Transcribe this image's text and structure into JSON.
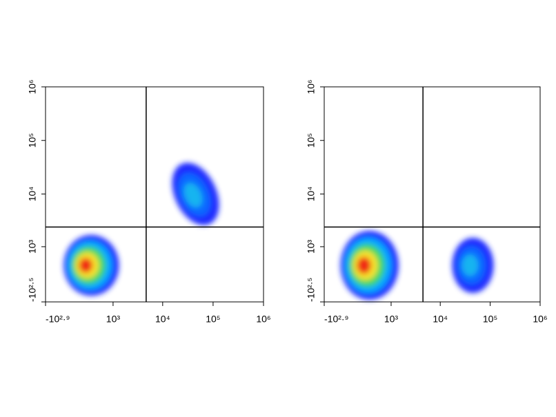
{
  "chart_data": [
    {
      "type": "density",
      "xlim": [
        -794,
        1000000
      ],
      "ylim": [
        -316,
        1000000
      ],
      "xticks": [
        {
          "value": -794,
          "label": "-10²·⁹"
        },
        {
          "value": 1000,
          "label": "10³"
        },
        {
          "value": 10000,
          "label": "10⁴"
        },
        {
          "value": 100000,
          "label": "10⁵"
        },
        {
          "value": 1000000,
          "label": "10⁶"
        }
      ],
      "yticks": [
        {
          "value": -316,
          "label": "-10²·⁵"
        },
        {
          "value": 1000,
          "label": "10³"
        },
        {
          "value": 10000,
          "label": "10⁴"
        },
        {
          "value": 100000,
          "label": "10⁵"
        },
        {
          "value": 1000000,
          "label": "10⁶"
        }
      ],
      "gate": {
        "x": 4700,
        "y": 2400
      },
      "populations": [
        {
          "x": 280,
          "y": 380,
          "colors": [
            "#1a2cff",
            "#00a8ff",
            "#3cd860",
            "#f5e32a",
            "#f02a12"
          ]
        },
        {
          "x": 45000,
          "y": 10000,
          "colors": [
            "#1a2cff",
            "#1068ff",
            "#18b4f0"
          ]
        }
      ]
    },
    {
      "type": "density",
      "xlim": [
        -794,
        1000000
      ],
      "ylim": [
        -316,
        1000000
      ],
      "xticks": [
        {
          "value": -794,
          "label": "-10²·⁹"
        },
        {
          "value": 1000,
          "label": "10³"
        },
        {
          "value": 10000,
          "label": "10⁴"
        },
        {
          "value": 100000,
          "label": "10⁵"
        },
        {
          "value": 1000000,
          "label": "10⁶"
        }
      ],
      "yticks": [
        {
          "value": -316,
          "label": "-10²·⁵"
        },
        {
          "value": 1000,
          "label": "10³"
        },
        {
          "value": 10000,
          "label": "10⁴"
        },
        {
          "value": 100000,
          "label": "10⁵"
        },
        {
          "value": 1000000,
          "label": "10⁶"
        }
      ],
      "gate": {
        "x": 4500,
        "y": 2400
      },
      "populations": [
        {
          "x": 280,
          "y": 380,
          "colors": [
            "#1a2cff",
            "#00a8ff",
            "#3cd860",
            "#f5e32a",
            "#f02a12"
          ]
        },
        {
          "x": 45000,
          "y": 380,
          "colors": [
            "#1a2cff",
            "#1068ff",
            "#18b4f0"
          ]
        }
      ]
    }
  ]
}
